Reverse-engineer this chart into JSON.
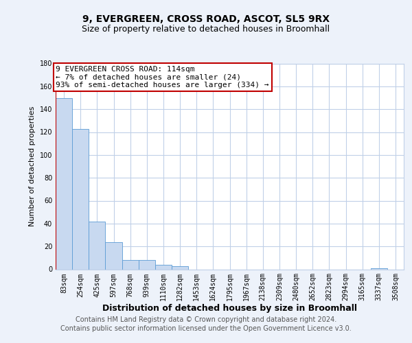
{
  "title1": "9, EVERGREEN, CROSS ROAD, ASCOT, SL5 9RX",
  "title2": "Size of property relative to detached houses in Broomhall",
  "xlabel": "Distribution of detached houses by size in Broomhall",
  "ylabel": "Number of detached properties",
  "categories": [
    "83sqm",
    "254sqm",
    "425sqm",
    "597sqm",
    "768sqm",
    "939sqm",
    "1110sqm",
    "1282sqm",
    "1453sqm",
    "1624sqm",
    "1795sqm",
    "1967sqm",
    "2138sqm",
    "2309sqm",
    "2480sqm",
    "2652sqm",
    "2823sqm",
    "2994sqm",
    "3165sqm",
    "3337sqm",
    "3508sqm"
  ],
  "values": [
    150,
    123,
    42,
    24,
    8,
    8,
    4,
    3,
    0,
    0,
    0,
    0,
    0,
    0,
    0,
    0,
    0,
    0,
    0,
    1,
    0
  ],
  "bar_color": "#c8d9f0",
  "bar_edge_color": "#5b9bd5",
  "vline_color": "#c00000",
  "vline_x_data": -0.32,
  "annotation_text": "9 EVERGREEN CROSS ROAD: 114sqm\n← 7% of detached houses are smaller (24)\n93% of semi-detached houses are larger (334) →",
  "ylim": [
    0,
    180
  ],
  "yticks": [
    0,
    20,
    40,
    60,
    80,
    100,
    120,
    140,
    160,
    180
  ],
  "footer1": "Contains HM Land Registry data © Crown copyright and database right 2024.",
  "footer2": "Contains public sector information licensed under the Open Government Licence v3.0.",
  "bg_color": "#edf2fa",
  "plot_bg_color": "#ffffff",
  "grid_color": "#c0d0e8",
  "ann_box_edge": "#c00000",
  "ann_box_face": "#ffffff",
  "title1_fontsize": 10,
  "title2_fontsize": 9,
  "ylabel_fontsize": 8,
  "xlabel_fontsize": 9,
  "tick_fontsize": 7,
  "ann_fontsize": 8,
  "footer_fontsize": 7
}
